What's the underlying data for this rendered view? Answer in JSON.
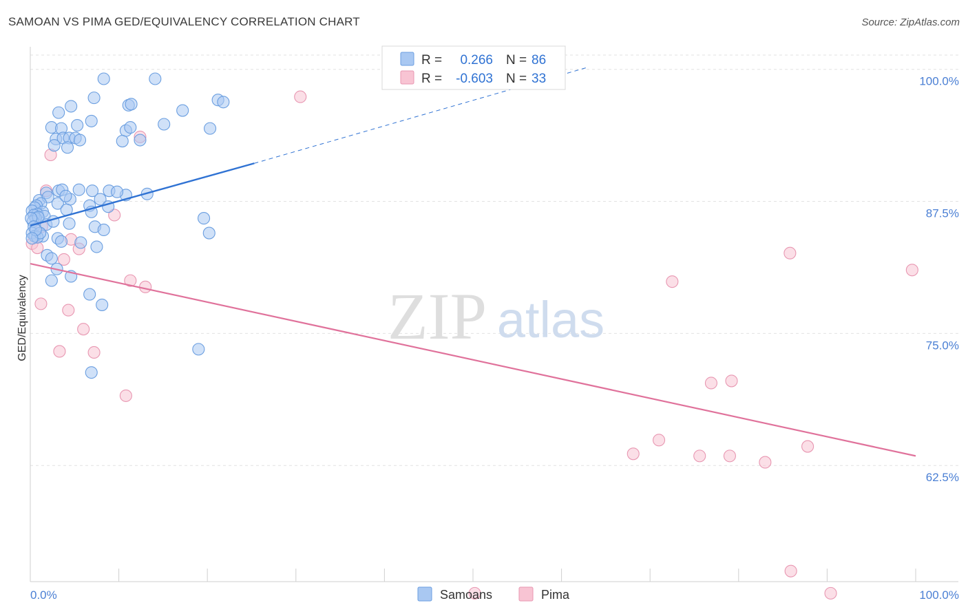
{
  "title": "SAMOAN VS PIMA GED/EQUIVALENCY CORRELATION CHART",
  "source": "Source: ZipAtlas.com",
  "watermark": {
    "zip": "ZIP",
    "atlas": "atlas"
  },
  "colors": {
    "samoan_fill": "#a9c8f2",
    "samoan_stroke": "#6a9ee0",
    "samoan_line": "#2f72d3",
    "pima_fill": "#f8c4d3",
    "pima_stroke": "#e896b1",
    "pima_line": "#e0729b",
    "tick_text": "#4a7fd4",
    "grid": "#e2e2e2"
  },
  "legend": {
    "samoan": {
      "r_label": "R =",
      "r_value": "0.266",
      "n_label": "N =",
      "n_value": "86"
    },
    "pima": {
      "r_label": "R =",
      "r_value": "-0.603",
      "n_label": "N =",
      "n_value": "33"
    }
  },
  "bottom_legend": [
    "Samoans",
    "Pima"
  ],
  "chart_data": {
    "type": "scatter",
    "xlabel": "",
    "ylabel": "GED/Equivalency",
    "xlim": [
      0,
      100
    ],
    "ylim": [
      51.5,
      102
    ],
    "x_tick_labels": [
      {
        "value": 0,
        "label": "0.0%"
      },
      {
        "value": 100,
        "label": "100.0%"
      }
    ],
    "y_ticks": [
      {
        "value": 100,
        "label": "100.0%"
      },
      {
        "value": 87.5,
        "label": "87.5%"
      },
      {
        "value": 75,
        "label": "75.0%"
      },
      {
        "value": 62.5,
        "label": "62.5%"
      }
    ],
    "x_minor_ticks": [
      0,
      10,
      20,
      30,
      40,
      50,
      60,
      70,
      80,
      90,
      100
    ],
    "grid": true,
    "series": [
      {
        "name": "Samoans",
        "trend": {
          "x0": 0,
          "y0": 85.2,
          "x1": 25.3,
          "y1": 91.1,
          "dash_to_x": 63,
          "dash_to_y": 100.2
        },
        "points": [
          [
            8.3,
            99.1
          ],
          [
            14.1,
            99.1
          ],
          [
            7.2,
            97.3
          ],
          [
            11.1,
            96.6
          ],
          [
            11.4,
            96.7
          ],
          [
            21.2,
            97.1
          ],
          [
            21.8,
            96.9
          ],
          [
            3.2,
            95.9
          ],
          [
            4.6,
            96.5
          ],
          [
            17.2,
            96.1
          ],
          [
            6.9,
            95.1
          ],
          [
            15.1,
            94.8
          ],
          [
            2.4,
            94.5
          ],
          [
            3.5,
            94.4
          ],
          [
            5.3,
            94.7
          ],
          [
            10.8,
            94.2
          ],
          [
            11.3,
            94.5
          ],
          [
            20.3,
            94.4
          ],
          [
            2.9,
            93.4
          ],
          [
            3.7,
            93.5
          ],
          [
            4.4,
            93.5
          ],
          [
            5.1,
            93.5
          ],
          [
            5.6,
            93.3
          ],
          [
            10.4,
            93.2
          ],
          [
            12.4,
            93.3
          ],
          [
            2.7,
            92.8
          ],
          [
            4.2,
            92.6
          ],
          [
            4.5,
            87.7
          ],
          [
            10.8,
            88.1
          ],
          [
            1.8,
            88.3
          ],
          [
            3.2,
            88.5
          ],
          [
            3.6,
            88.6
          ],
          [
            5.5,
            88.6
          ],
          [
            7.0,
            88.5
          ],
          [
            8.9,
            88.5
          ],
          [
            9.8,
            88.4
          ],
          [
            13.2,
            88.2
          ],
          [
            1.0,
            87.6
          ],
          [
            2.0,
            87.9
          ],
          [
            3.1,
            87.3
          ],
          [
            4.0,
            88.0
          ],
          [
            7.9,
            87.7
          ],
          [
            1.2,
            87.3
          ],
          [
            0.7,
            87.1
          ],
          [
            6.7,
            87.1
          ],
          [
            8.8,
            87.0
          ],
          [
            0.5,
            86.9
          ],
          [
            1.4,
            86.5
          ],
          [
            4.1,
            86.7
          ],
          [
            6.9,
            86.5
          ],
          [
            0.2,
            86.6
          ],
          [
            0.8,
            86.3
          ],
          [
            1.6,
            86.1
          ],
          [
            0.4,
            86.2
          ],
          [
            0.6,
            85.9
          ],
          [
            1.8,
            85.3
          ],
          [
            4.4,
            85.4
          ],
          [
            7.3,
            85.1
          ],
          [
            8.3,
            84.8
          ],
          [
            0.3,
            85.6
          ],
          [
            0.9,
            86.0
          ],
          [
            0.1,
            85.9
          ],
          [
            2.6,
            85.6
          ],
          [
            0.4,
            85.1
          ],
          [
            0.2,
            84.5
          ],
          [
            0.5,
            84.2
          ],
          [
            1.4,
            84.2
          ],
          [
            3.1,
            84.0
          ],
          [
            3.5,
            83.7
          ],
          [
            5.7,
            83.6
          ],
          [
            7.5,
            83.2
          ],
          [
            19.6,
            85.9
          ],
          [
            20.2,
            84.5
          ],
          [
            1.9,
            82.4
          ],
          [
            2.4,
            82.1
          ],
          [
            3.0,
            81.1
          ],
          [
            2.4,
            80.0
          ],
          [
            4.6,
            80.4
          ],
          [
            6.7,
            78.7
          ],
          [
            8.1,
            77.7
          ],
          [
            6.9,
            71.3
          ],
          [
            19.0,
            73.5
          ],
          [
            0.8,
            84.1
          ],
          [
            1.1,
            84.5
          ],
          [
            0.6,
            84.8
          ],
          [
            0.2,
            84.0
          ]
        ]
      },
      {
        "name": "Pima",
        "trend": {
          "x0": 0,
          "y0": 81.6,
          "x1": 100,
          "y1": 63.4
        },
        "points": [
          [
            30.5,
            97.4
          ],
          [
            12.4,
            93.6
          ],
          [
            2.3,
            91.9
          ],
          [
            1.8,
            88.5
          ],
          [
            9.5,
            86.2
          ],
          [
            1.3,
            85.1
          ],
          [
            0.2,
            83.5
          ],
          [
            4.6,
            83.9
          ],
          [
            5.5,
            83.0
          ],
          [
            0.8,
            83.1
          ],
          [
            3.8,
            82.0
          ],
          [
            11.3,
            80.0
          ],
          [
            13.0,
            79.4
          ],
          [
            1.2,
            77.8
          ],
          [
            4.3,
            77.2
          ],
          [
            6.0,
            75.4
          ],
          [
            3.3,
            73.3
          ],
          [
            7.2,
            73.2
          ],
          [
            10.8,
            69.1
          ],
          [
            85.8,
            82.6
          ],
          [
            99.6,
            81.0
          ],
          [
            72.5,
            79.9
          ],
          [
            76.9,
            70.3
          ],
          [
            79.2,
            70.5
          ],
          [
            71.0,
            64.9
          ],
          [
            68.1,
            63.6
          ],
          [
            75.6,
            63.4
          ],
          [
            79.0,
            63.4
          ],
          [
            83.0,
            62.8
          ],
          [
            87.8,
            64.3
          ],
          [
            85.9,
            52.5
          ],
          [
            50.2,
            50.4
          ],
          [
            90.4,
            50.4
          ]
        ]
      }
    ]
  }
}
